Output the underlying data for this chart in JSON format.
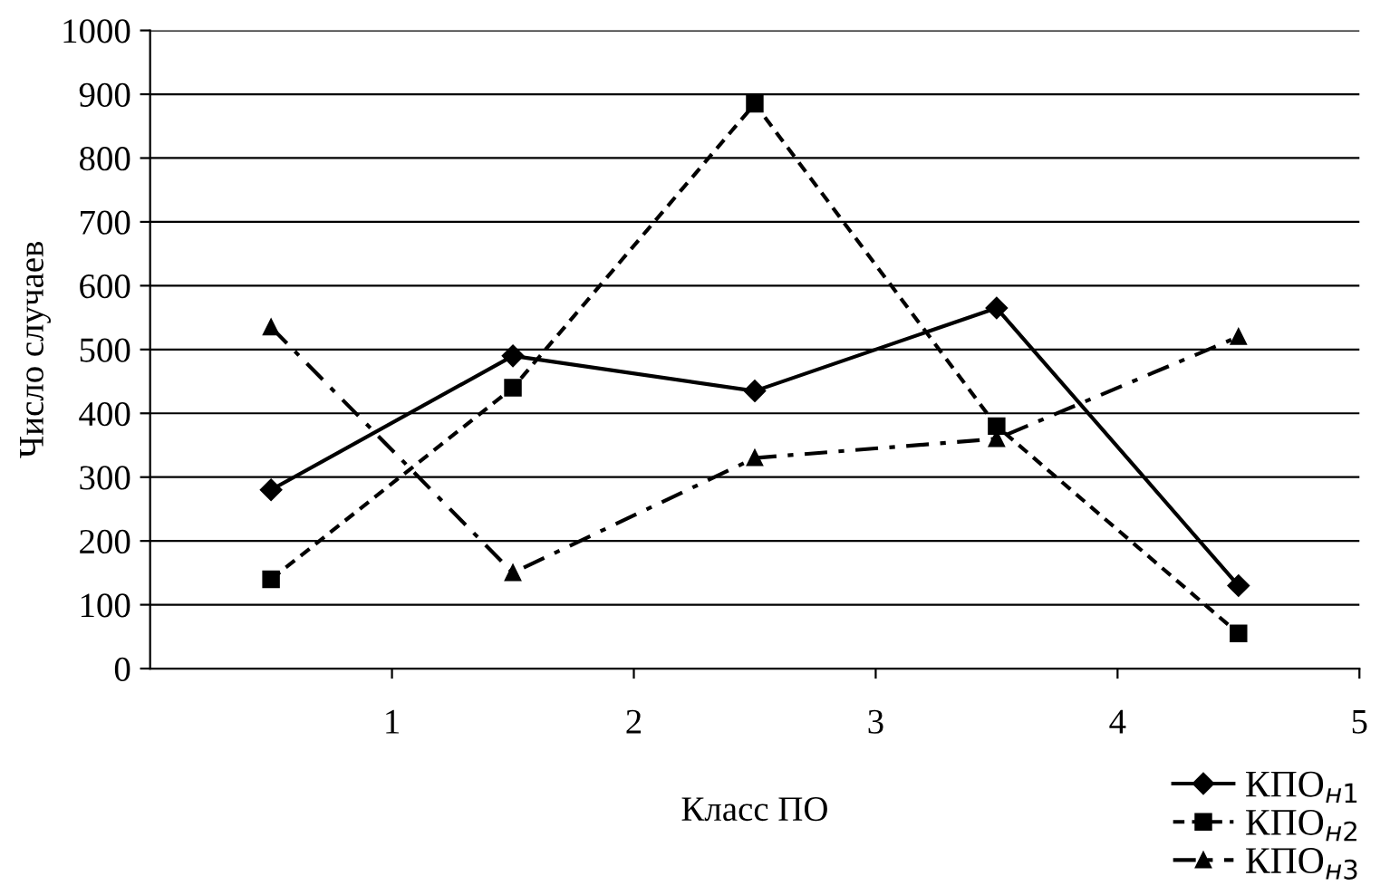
{
  "chart_data": {
    "type": "line",
    "xlabel": "Класс ПО",
    "ylabel": "Число случаев",
    "x": [
      0.5,
      1.5,
      2.5,
      3.5,
      4.5
    ],
    "series": [
      {
        "name": "КПО$_{н1}$",
        "color": "#000000",
        "marker": "diamond",
        "line_style": "solid",
        "values": [
          280,
          490,
          435,
          565,
          130
        ]
      },
      {
        "name": "КПО$_{н2}$",
        "color": "#000000",
        "marker": "square",
        "line_style": "dashed",
        "values": [
          140,
          440,
          885,
          380,
          55
        ]
      },
      {
        "name": "КПО$_{н3}$",
        "color": "#000000",
        "marker": "triangle",
        "line_style": "dashdot",
        "values": [
          535,
          150,
          330,
          360,
          520
        ]
      }
    ],
    "xlim": [
      0,
      5
    ],
    "xticks": [
      1,
      2,
      3,
      4,
      5
    ],
    "ylim": [
      0,
      1000
    ],
    "yticks": [
      0,
      100,
      200,
      300,
      400,
      500,
      600,
      700,
      800,
      900,
      1000
    ],
    "grid": "y",
    "legend": "bottom right"
  }
}
